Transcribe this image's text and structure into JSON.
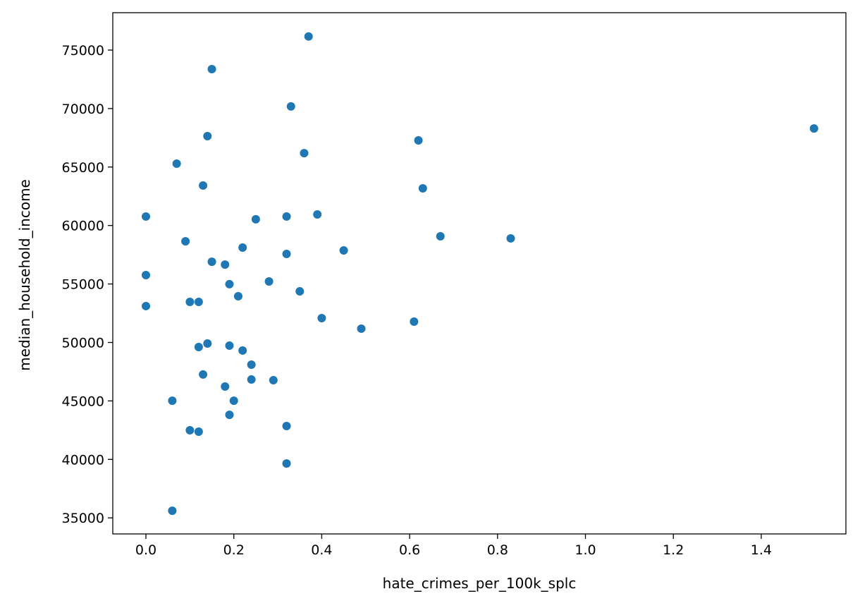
{
  "chart_data": {
    "type": "scatter",
    "title": "",
    "xlabel": "hate_crimes_per_100k_splc",
    "ylabel": "median_household_income",
    "xlim": [
      -0.0754,
      1.5926
    ],
    "ylim": [
      33625,
      78197
    ],
    "xticks": [
      0.0,
      0.2,
      0.4,
      0.6,
      0.8,
      1.0,
      1.2,
      1.4
    ],
    "xtick_labels": [
      "0.0",
      "0.2",
      "0.4",
      "0.6",
      "0.8",
      "1.0",
      "1.2",
      "1.4"
    ],
    "yticks": [
      35000,
      40000,
      45000,
      50000,
      55000,
      60000,
      65000,
      70000,
      75000
    ],
    "ytick_labels": [
      "35000",
      "40000",
      "45000",
      "50000",
      "55000",
      "60000",
      "65000",
      "70000",
      "75000"
    ],
    "grid": false,
    "color": "#1f77b4",
    "points": [
      [
        0.37,
        76165
      ],
      [
        0.15,
        73370
      ],
      [
        0.33,
        70180
      ],
      [
        1.52,
        68300
      ],
      [
        0.14,
        67640
      ],
      [
        0.62,
        67280
      ],
      [
        0.36,
        66190
      ],
      [
        0.07,
        65290
      ],
      [
        0.13,
        63420
      ],
      [
        0.63,
        63180
      ],
      [
        0.0,
        60770
      ],
      [
        0.32,
        60770
      ],
      [
        0.39,
        60950
      ],
      [
        0.25,
        60530
      ],
      [
        0.67,
        59080
      ],
      [
        0.83,
        58900
      ],
      [
        0.09,
        58650
      ],
      [
        0.22,
        58110
      ],
      [
        0.45,
        57870
      ],
      [
        0.32,
        57570
      ],
      [
        0.15,
        56900
      ],
      [
        0.18,
        56660
      ],
      [
        0.0,
        55760
      ],
      [
        0.28,
        55220
      ],
      [
        0.19,
        54980
      ],
      [
        0.35,
        54370
      ],
      [
        0.21,
        53950
      ],
      [
        0.1,
        53470
      ],
      [
        0.12,
        53470
      ],
      [
        0.0,
        53110
      ],
      [
        0.4,
        52080
      ],
      [
        0.61,
        51780
      ],
      [
        0.49,
        51180
      ],
      [
        0.14,
        49910
      ],
      [
        0.12,
        49610
      ],
      [
        0.19,
        49730
      ],
      [
        0.22,
        49310
      ],
      [
        0.24,
        48100
      ],
      [
        0.13,
        47260
      ],
      [
        0.24,
        46830
      ],
      [
        0.29,
        46770
      ],
      [
        0.18,
        46230
      ],
      [
        0.06,
        45020
      ],
      [
        0.2,
        45020
      ],
      [
        0.19,
        43810
      ],
      [
        0.1,
        42490
      ],
      [
        0.12,
        42370
      ],
      [
        0.32,
        42850
      ],
      [
        0.32,
        39650
      ],
      [
        0.06,
        35610
      ]
    ]
  }
}
